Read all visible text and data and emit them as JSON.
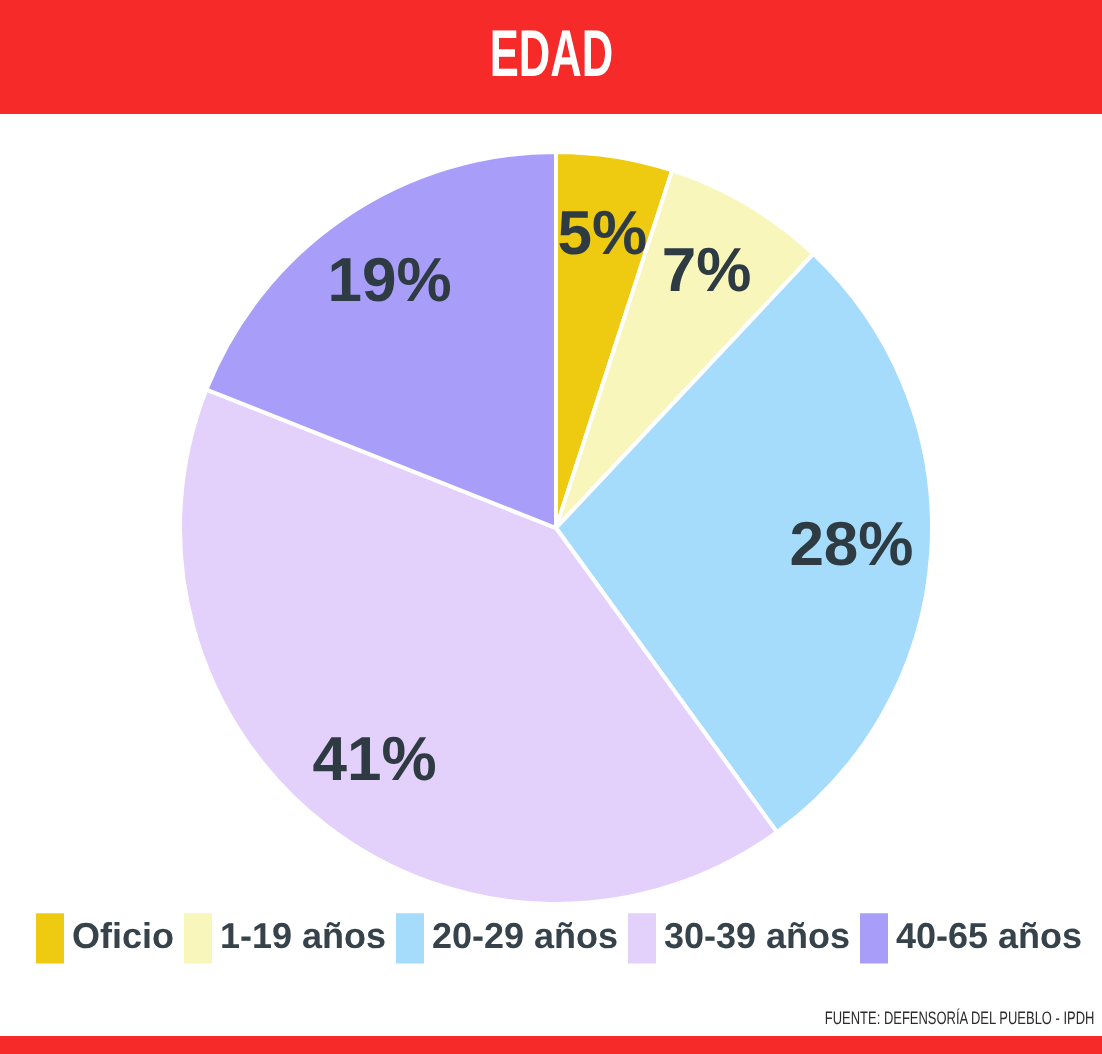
{
  "chart_data": {
    "type": "pie",
    "title": "EDAD",
    "categories": [
      "Oficio",
      "1-19 años",
      "20-29 años",
      "30-39 años",
      "40-65 años"
    ],
    "values": [
      5,
      7,
      28,
      41,
      19
    ],
    "value_labels": [
      "5%",
      "7%",
      "28%",
      "41%",
      "19%"
    ],
    "colors": [
      "#eecb10",
      "#f8f6bb",
      "#a5dcfb",
      "#e3d1fb",
      "#a99dfa"
    ],
    "legend": "bottom",
    "annotations": [
      "FUENTE: DEFENSORÍA DEL PUEBLO - IPDH"
    ]
  }
}
